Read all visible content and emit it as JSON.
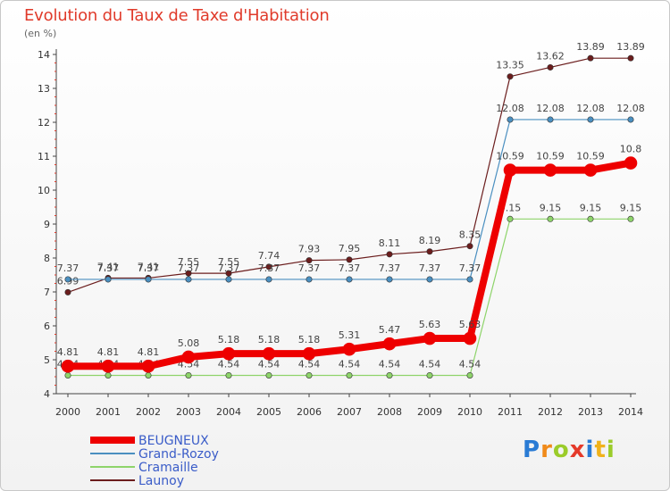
{
  "chart_data": {
    "type": "line",
    "title": "Evolution du Taux de Taxe d'Habitation",
    "subtitle": "(en %)",
    "x": [
      "2000",
      "2001",
      "2002",
      "2003",
      "2004",
      "2005",
      "2006",
      "2007",
      "2008",
      "2009",
      "2010",
      "2011",
      "2012",
      "2013",
      "2014"
    ],
    "ylim": [
      4,
      14
    ],
    "yticks": [
      4,
      5,
      6,
      7,
      8,
      9,
      10,
      11,
      12,
      13,
      14
    ],
    "grid": false,
    "legend_position": "bottom-left",
    "series": [
      {
        "name": "Launoy",
        "color": "#6b1d1d",
        "width": 1.2,
        "values": [
          6.99,
          7.41,
          7.41,
          7.55,
          7.55,
          7.74,
          7.93,
          7.95,
          8.11,
          8.19,
          8.35,
          13.35,
          13.62,
          13.89,
          13.89
        ],
        "labels": [
          "6.99",
          "7.41",
          "7.41",
          "7.55",
          "7.55",
          "7.74",
          "7.93",
          "7.95",
          "8.11",
          "8.19",
          "8.35",
          "13.35",
          "13.62",
          "13.89",
          "13.89"
        ]
      },
      {
        "name": "Grand-Rozoy",
        "color": "#4a8fc0",
        "width": 1.2,
        "values": [
          7.37,
          7.37,
          7.37,
          7.37,
          7.37,
          7.37,
          7.37,
          7.37,
          7.37,
          7.37,
          7.37,
          12.08,
          12.08,
          12.08,
          12.08
        ],
        "labels": [
          "7.37",
          "7.37",
          "7.37",
          "7.37",
          "7.37",
          "7.37",
          "7.37",
          "7.37",
          "7.37",
          "7.37",
          "7.37",
          "12.08",
          "12.08",
          "12.08",
          "12.08"
        ]
      },
      {
        "name": "Cramaille",
        "color": "#8ed46a",
        "width": 1.2,
        "values": [
          4.54,
          4.54,
          4.54,
          4.54,
          4.54,
          4.54,
          4.54,
          4.54,
          4.54,
          4.54,
          4.54,
          9.15,
          9.15,
          9.15,
          9.15
        ],
        "labels": [
          "4.54",
          "4.54",
          "4.54",
          "4.54",
          "4.54",
          "4.54",
          "4.54",
          "4.54",
          "4.54",
          "4.54",
          "4.54",
          "9.15",
          "9.15",
          "9.15",
          "9.15"
        ]
      },
      {
        "name": "BEUGNEUX",
        "color": "#ee0000",
        "width": 8,
        "values": [
          4.81,
          4.81,
          4.81,
          5.08,
          5.18,
          5.18,
          5.18,
          5.31,
          5.47,
          5.63,
          5.63,
          10.59,
          10.59,
          10.59,
          10.8
        ],
        "labels": [
          "4.81",
          "4.81",
          "4.81",
          "5.08",
          "5.18",
          "5.18",
          "5.18",
          "5.31",
          "5.47",
          "5.63",
          "5.63",
          "10.59",
          "10.59",
          "10.59",
          "10.8"
        ]
      }
    ],
    "legend": [
      {
        "name": "BEUGNEUX",
        "color": "#ee0000",
        "text_color": "#3a5cc8"
      },
      {
        "name": "Grand-Rozoy",
        "color": "#4a8fc0",
        "text_color": "#3a5cc8"
      },
      {
        "name": "Cramaille",
        "color": "#8ed46a",
        "text_color": "#3a5cc8"
      },
      {
        "name": "Launoy",
        "color": "#6b1d1d",
        "text_color": "#3a5cc8"
      }
    ]
  },
  "logo": {
    "text": "Proxiti",
    "letters": [
      {
        "ch": "P",
        "color": "#2a7bd4"
      },
      {
        "ch": "r",
        "color": "#f08a1a"
      },
      {
        "ch": "o",
        "color": "#9bcc2a"
      },
      {
        "ch": "x",
        "color": "#e53a2a"
      },
      {
        "ch": "i",
        "color": "#2a7bd4"
      },
      {
        "ch": "t",
        "color": "#f0b21a"
      },
      {
        "ch": "i",
        "color": "#9bcc2a"
      }
    ]
  }
}
